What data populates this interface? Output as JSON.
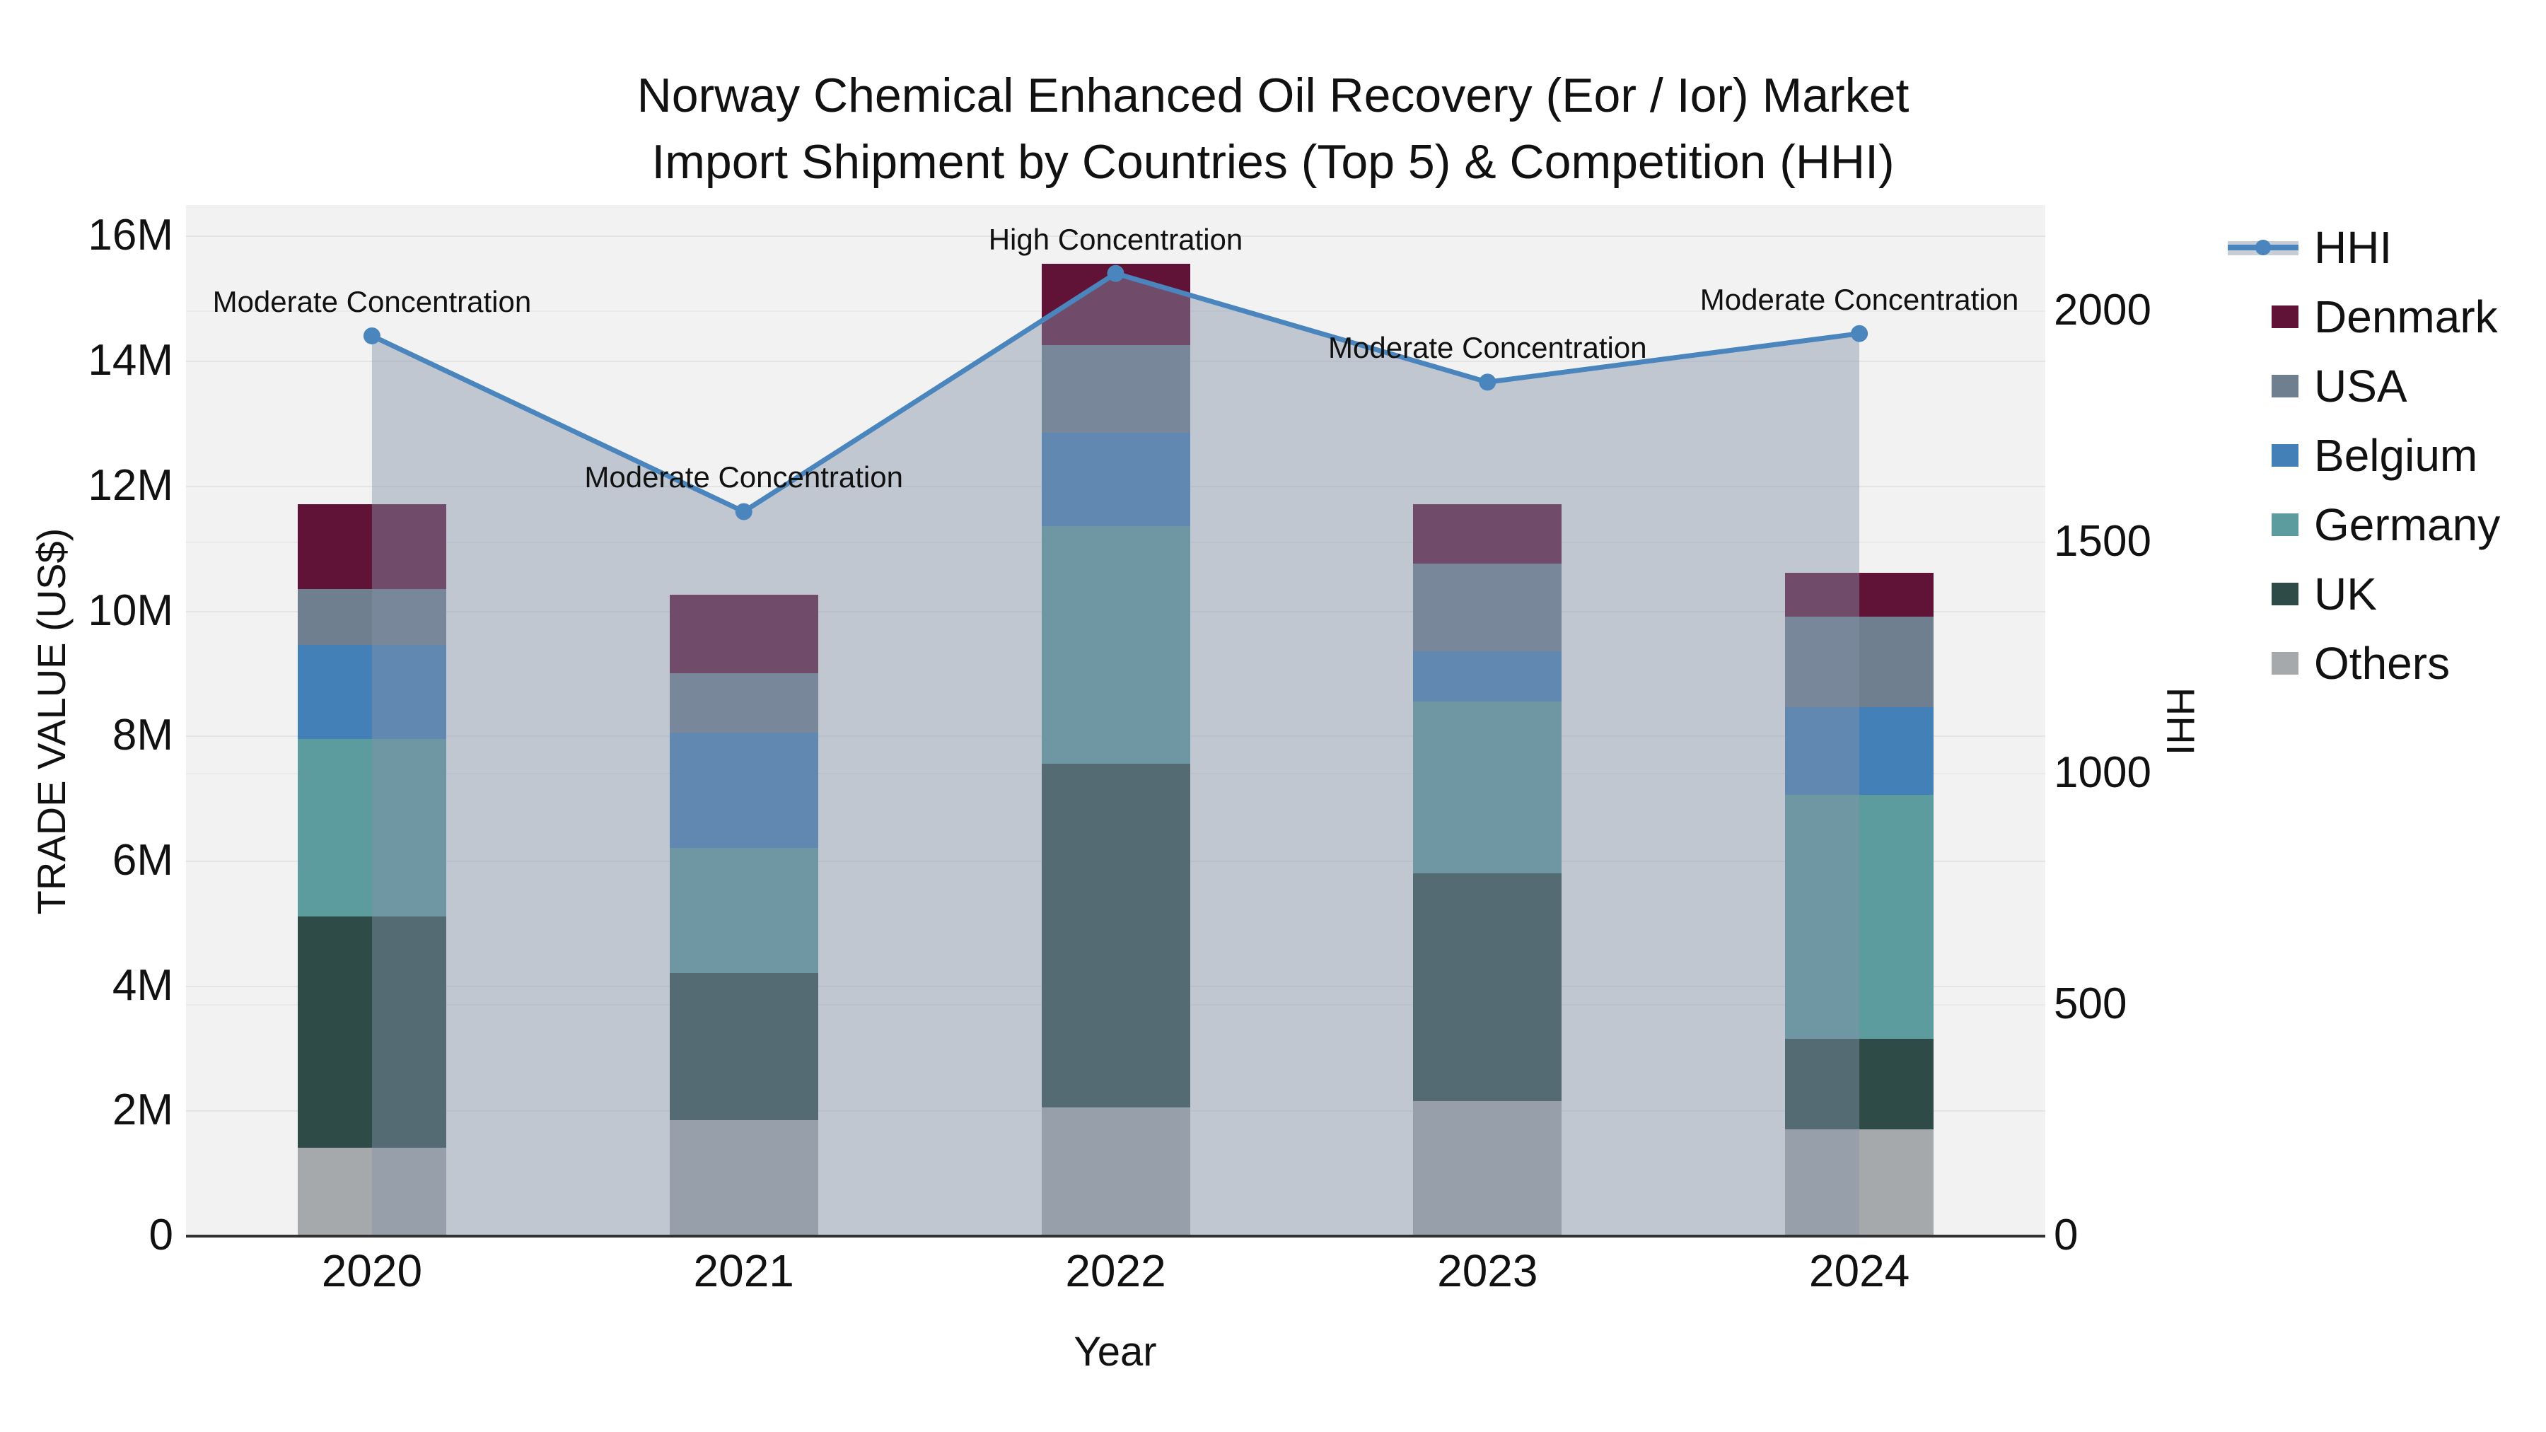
{
  "title": {
    "line1": "Norway Chemical Enhanced Oil Recovery (Eor / Ior) Market",
    "line2": "Import Shipment by Countries (Top 5) & Competition (HHI)"
  },
  "axes": {
    "x_title": "Year",
    "y_left_title": "TRADE VALUE (US$)",
    "y_right_title": "HHI",
    "x_ticks": [
      "2020",
      "2021",
      "2022",
      "2023",
      "2024"
    ],
    "y_left_ticks": [
      {
        "label": "0",
        "value": 0
      },
      {
        "label": "2M",
        "value": 2
      },
      {
        "label": "4M",
        "value": 4
      },
      {
        "label": "6M",
        "value": 6
      },
      {
        "label": "8M",
        "value": 8
      },
      {
        "label": "10M",
        "value": 10
      },
      {
        "label": "12M",
        "value": 12
      },
      {
        "label": "14M",
        "value": 14
      },
      {
        "label": "16M",
        "value": 16
      }
    ],
    "y_right_ticks": [
      {
        "label": "0",
        "value": 0
      },
      {
        "label": "500",
        "value": 500
      },
      {
        "label": "1000",
        "value": 1000
      },
      {
        "label": "1500",
        "value": 1500
      },
      {
        "label": "2000",
        "value": 2000
      }
    ]
  },
  "colors": {
    "plot_background": "#f2f2f3",
    "hhi_line": "#4a85bd",
    "hhi_fill": "rgba(133,146,168,0.45)",
    "denmark": "#601337",
    "usa": "#6f7f90",
    "belgium": "#4380b8",
    "germany": "#5c9c9e",
    "uk": "#2e4b48",
    "others": "#a6a9ac"
  },
  "chart_data": {
    "type": "bar",
    "subtype": "stacked-bars-with-line-overlay",
    "title": "Norway Chemical Enhanced Oil Recovery (Eor / Ior) Market Import Shipment by Countries (Top 5) & Competition (HHI)",
    "xlabel": "Year",
    "ylabel": "TRADE VALUE (US$)",
    "ylabel_right": "HHI",
    "unit": "millions of US$",
    "ylim": [
      0,
      16.5
    ],
    "ylim_right": [
      0,
      2230
    ],
    "grid": true,
    "legend_position": "right",
    "categories": [
      "2020",
      "2021",
      "2022",
      "2023",
      "2024"
    ],
    "series": [
      {
        "name": "Others",
        "color": "#a6a9ac",
        "values": [
          1.4,
          1.85,
          2.05,
          2.15,
          1.7
        ]
      },
      {
        "name": "UK",
        "color": "#2e4b48",
        "values": [
          3.7,
          2.35,
          5.5,
          3.65,
          1.45
        ]
      },
      {
        "name": "Germany",
        "color": "#5c9c9e",
        "values": [
          2.85,
          2.0,
          3.8,
          2.75,
          3.9
        ]
      },
      {
        "name": "Belgium",
        "color": "#4380b8",
        "values": [
          1.5,
          1.85,
          1.5,
          0.8,
          1.4
        ]
      },
      {
        "name": "USA",
        "color": "#6f7f90",
        "values": [
          0.9,
          0.95,
          1.4,
          1.4,
          1.45
        ]
      },
      {
        "name": "Denmark",
        "color": "#601337",
        "values": [
          1.35,
          1.25,
          1.3,
          0.95,
          0.7
        ]
      }
    ],
    "totals": [
      11.7,
      10.25,
      15.55,
      11.7,
      10.6
    ],
    "hhi": {
      "name": "HHI",
      "color": "#4a85bd",
      "fill": "rgba(133,146,168,0.45)",
      "values": [
        1945,
        1565,
        2080,
        1845,
        1950
      ]
    },
    "annotations": [
      {
        "category": "2020",
        "text": "Moderate Concentration"
      },
      {
        "category": "2021",
        "text": "Moderate Concentration"
      },
      {
        "category": "2022",
        "text": "High Concentration"
      },
      {
        "category": "2023",
        "text": "Moderate Concentration"
      },
      {
        "category": "2024",
        "text": "Moderate Concentration"
      }
    ],
    "legend_items": [
      "HHI",
      "Denmark",
      "USA",
      "Belgium",
      "Germany",
      "UK",
      "Others"
    ]
  }
}
